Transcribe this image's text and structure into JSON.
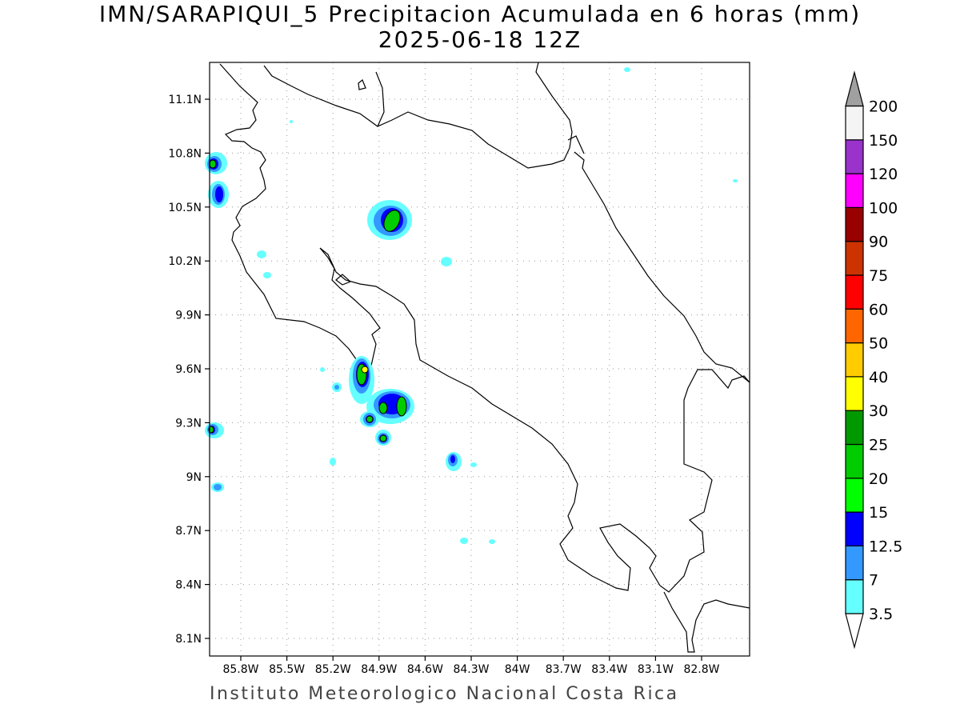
{
  "title": {
    "line1": "IMN/SARAPIQUI_5 Precipitacion Acumulada en 6 horas (mm)",
    "line2": "2025-06-18 12Z"
  },
  "credit": "Instituto Meteorologico Nacional Costa Rica",
  "axes": {
    "lat_labels": [
      "11.1N",
      "10.8N",
      "10.5N",
      "10.2N",
      "9.9N",
      "9.6N",
      "9.3N",
      "9N",
      "8.7N",
      "8.4N",
      "8.1N"
    ],
    "lon_labels": [
      "85.8W",
      "85.5W",
      "85.2W",
      "84.9W",
      "84.6W",
      "84.3W",
      "84W",
      "83.7W",
      "83.4W",
      "83.1W",
      "82.8W"
    ]
  },
  "legend": {
    "labels": [
      "3.5",
      "7",
      "12.5",
      "15",
      "20",
      "25",
      "30",
      "40",
      "50",
      "60",
      "75",
      "90",
      "100",
      "120",
      "150",
      "200"
    ],
    "colors": [
      "#66ffff",
      "#3399ff",
      "#0000ff",
      "#00ff00",
      "#00cc00",
      "#009900",
      "#ffff00",
      "#ffcc00",
      "#ff6600",
      "#ff0000",
      "#cc3300",
      "#990000",
      "#ff00ff",
      "#9933cc",
      "#f4f4f4",
      "#a0a0a0"
    ]
  }
}
